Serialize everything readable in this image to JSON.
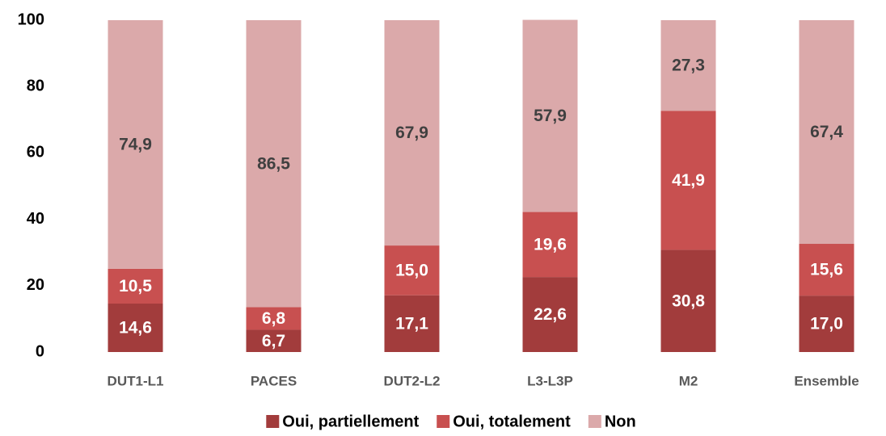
{
  "chart_data": {
    "type": "stacked_bar",
    "categories": [
      "DUT1-L1",
      "PACES",
      "DUT2-L2",
      "L3-L3P",
      "M2",
      "Ensemble"
    ],
    "series": [
      {
        "name": "Oui, partiellement",
        "color": "#a23c3c",
        "values": [
          14.6,
          6.7,
          17.1,
          22.6,
          30.8,
          17.0
        ],
        "value_labels": [
          "14,6",
          "6,7",
          "17,1",
          "22,6",
          "30,8",
          "17,0"
        ]
      },
      {
        "name": "Oui, totalement",
        "color": "#c85050",
        "values": [
          10.5,
          6.8,
          15.0,
          19.6,
          41.9,
          15.6
        ],
        "value_labels": [
          "10,5",
          "6,8",
          "15,0",
          "19,6",
          "41,9",
          "15,6"
        ]
      },
      {
        "name": "Non",
        "color": "#dba9aa",
        "values": [
          74.9,
          86.5,
          67.9,
          57.9,
          27.3,
          67.4
        ],
        "value_labels": [
          "74,9",
          "86,5",
          "67,9",
          "57,9",
          "27,3",
          "67,4"
        ]
      }
    ],
    "ylim": [
      0,
      100
    ],
    "yticks": [
      0,
      20,
      40,
      60,
      80,
      100
    ],
    "legend": "bottom"
  }
}
